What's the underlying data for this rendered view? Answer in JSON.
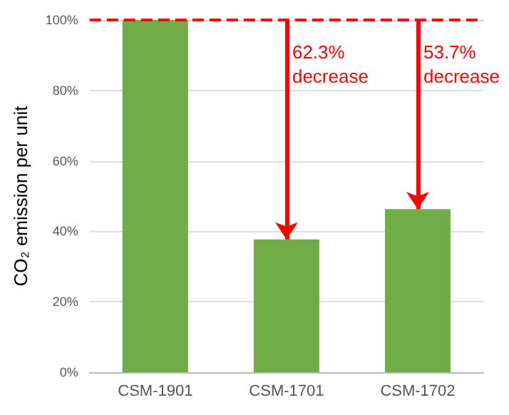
{
  "chart_data": {
    "type": "bar",
    "ylabel": "CO₂ emission per unit",
    "categories": [
      "CSM-1901",
      "CSM-1701",
      "CSM-1702"
    ],
    "values": [
      100,
      37.7,
      46.3
    ],
    "color": "#70ad47",
    "ylim": [
      0,
      100
    ],
    "yticks": [
      {
        "value": 0,
        "label": "0%"
      },
      {
        "value": 20,
        "label": "20%"
      },
      {
        "value": 40,
        "label": "40%"
      },
      {
        "value": 60,
        "label": "60%"
      },
      {
        "value": 80,
        "label": "80%"
      },
      {
        "value": 100,
        "label": "100%"
      }
    ],
    "grid": "y",
    "ref_lines": [
      {
        "axis": "y",
        "value": 100,
        "color": "#ff0000",
        "line_style": "dashed"
      }
    ],
    "annotations": [
      {
        "text": "62.3%\ndecrease",
        "x": "CSM-1701",
        "y": 37.7
      },
      {
        "text": "53.7%\ndecrease",
        "x": "CSM-1702",
        "y": 46.3
      }
    ]
  }
}
